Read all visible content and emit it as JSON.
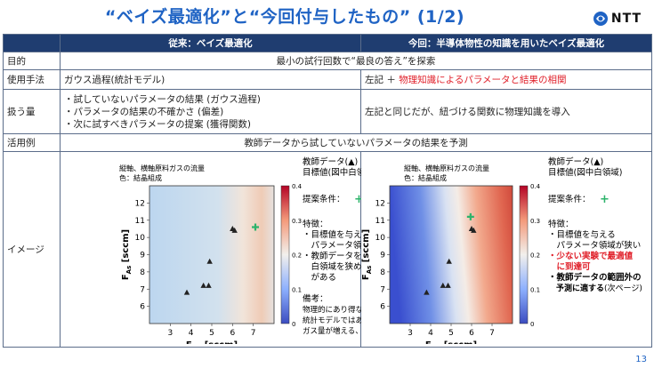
{
  "slide": {
    "title": "“ベイズ最適化”と“今回付与したもの” (1/2)",
    "logo_text": "NTT",
    "page_number": "13"
  },
  "table": {
    "headers": [
      "",
      "従来：ベイズ最適化",
      "今回：半導体物性の知識を用いたベイズ最適化"
    ],
    "purpose": {
      "label": "目的",
      "text": "最小の試行回数で“最良の答え”を探索"
    },
    "method": {
      "label": "使用手法",
      "left": "ガウス過程(統計モデル)",
      "right_prefix": "左記 ＋ ",
      "right_highlight": "物理知識によるパラメータと結果の相関"
    },
    "quantities": {
      "label": "扱う量",
      "left": [
        "・試していないパラメータの結果 (ガウス過程)",
        "・パラメータの結果の不確かさ (偏差)",
        "・次に試すべきパラメータの提案 (獲得関数)"
      ],
      "right": "左記と同じだが、紐づける関数に物理知識を導入"
    },
    "usage": {
      "label": "活用例",
      "text": "教師データから試していないパラメータの結果を予測"
    },
    "image_label": "イメージ"
  },
  "left_panel": {
    "caption1": "縦軸、横軸原料ガスの流量",
    "caption2": "色：結晶組成",
    "notes": {
      "teacher": "教師データ(▲)",
      "target": "目標値(図中白領域)",
      "proposal_label": "提案条件：",
      "features_title": "特徴：",
      "features": [
        "・目標値を与える",
        "　パラメータ領域が広い",
        "・教師データを増やし",
        "　白領域を狭める必要",
        "　がある"
      ],
      "remarks_title": "備考：",
      "remarks": [
        "物理的にあり得ない予測が",
        "統計モデルではありえてしまう",
        "ガス量が増える、組成が減る"
      ]
    }
  },
  "right_panel": {
    "caption1": "縦軸、横軸原料ガスの流量",
    "caption2": "色：結晶組成",
    "notes": {
      "teacher": "教師データ(▲)",
      "target": "目標値(図中白領域)",
      "proposal_label": "提案条件：",
      "features_title": "特徴：",
      "features_plain": [
        "・目標値を与える",
        "　パラメータ領域が狭い"
      ],
      "features_red": [
        "・少ない実験で最適値",
        "　に到達可"
      ],
      "features_bold": [
        "・教師データの範囲外の",
        "　予測に適する"
      ],
      "features_bold_suffix": "(次ページ)"
    }
  },
  "chart_data": [
    {
      "type": "heatmap",
      "xlabel": "F_Ga [sccm]",
      "ylabel": "F_As [sccm]",
      "xlim": [
        2,
        8
      ],
      "ylim": [
        5,
        13
      ],
      "xticks": [
        3,
        4,
        5,
        6,
        7
      ],
      "yticks": [
        6,
        7,
        8,
        9,
        10,
        11,
        12
      ],
      "colorbar_ticks": [
        0,
        0.1,
        0.2,
        0.3,
        0.4
      ],
      "colorbar_range": [
        0,
        0.4
      ],
      "teacher_points": [
        {
          "x": 3.8,
          "y": 6.8
        },
        {
          "x": 4.6,
          "y": 7.2
        },
        {
          "x": 4.85,
          "y": 7.2
        },
        {
          "x": 4.9,
          "y": 8.6
        },
        {
          "x": 6.0,
          "y": 10.5
        },
        {
          "x": 6.1,
          "y": 10.4
        }
      ],
      "proposal_point": {
        "x": 7.1,
        "y": 10.6
      }
    },
    {
      "type": "heatmap",
      "xlabel": "F_Ga [sccm]",
      "ylabel": "F_As [sccm]",
      "xlim": [
        2,
        8
      ],
      "ylim": [
        5,
        13
      ],
      "xticks": [
        3,
        4,
        5,
        6,
        7
      ],
      "yticks": [
        6,
        7,
        8,
        9,
        10,
        11,
        12
      ],
      "colorbar_ticks": [
        0,
        0.1,
        0.2,
        0.3,
        0.4
      ],
      "colorbar_range": [
        0,
        0.4
      ],
      "teacher_points": [
        {
          "x": 3.8,
          "y": 6.8
        },
        {
          "x": 4.6,
          "y": 7.2
        },
        {
          "x": 4.85,
          "y": 7.2
        },
        {
          "x": 4.9,
          "y": 8.6
        },
        {
          "x": 6.0,
          "y": 10.5
        },
        {
          "x": 6.1,
          "y": 10.4
        }
      ],
      "proposal_point": {
        "x": 5.95,
        "y": 11.2
      }
    }
  ]
}
